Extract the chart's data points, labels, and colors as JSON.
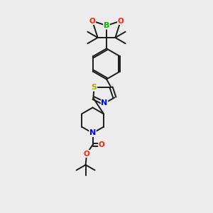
{
  "background_color": "#ececec",
  "bond_color": "#1a1a1a",
  "atom_colors": {
    "B": "#00bb00",
    "O": "#ff2200",
    "N": "#0000ff",
    "S": "#aaaa00",
    "C": "#1a1a1a"
  },
  "figsize": [
    3.0,
    3.0
  ],
  "dpi": 100
}
